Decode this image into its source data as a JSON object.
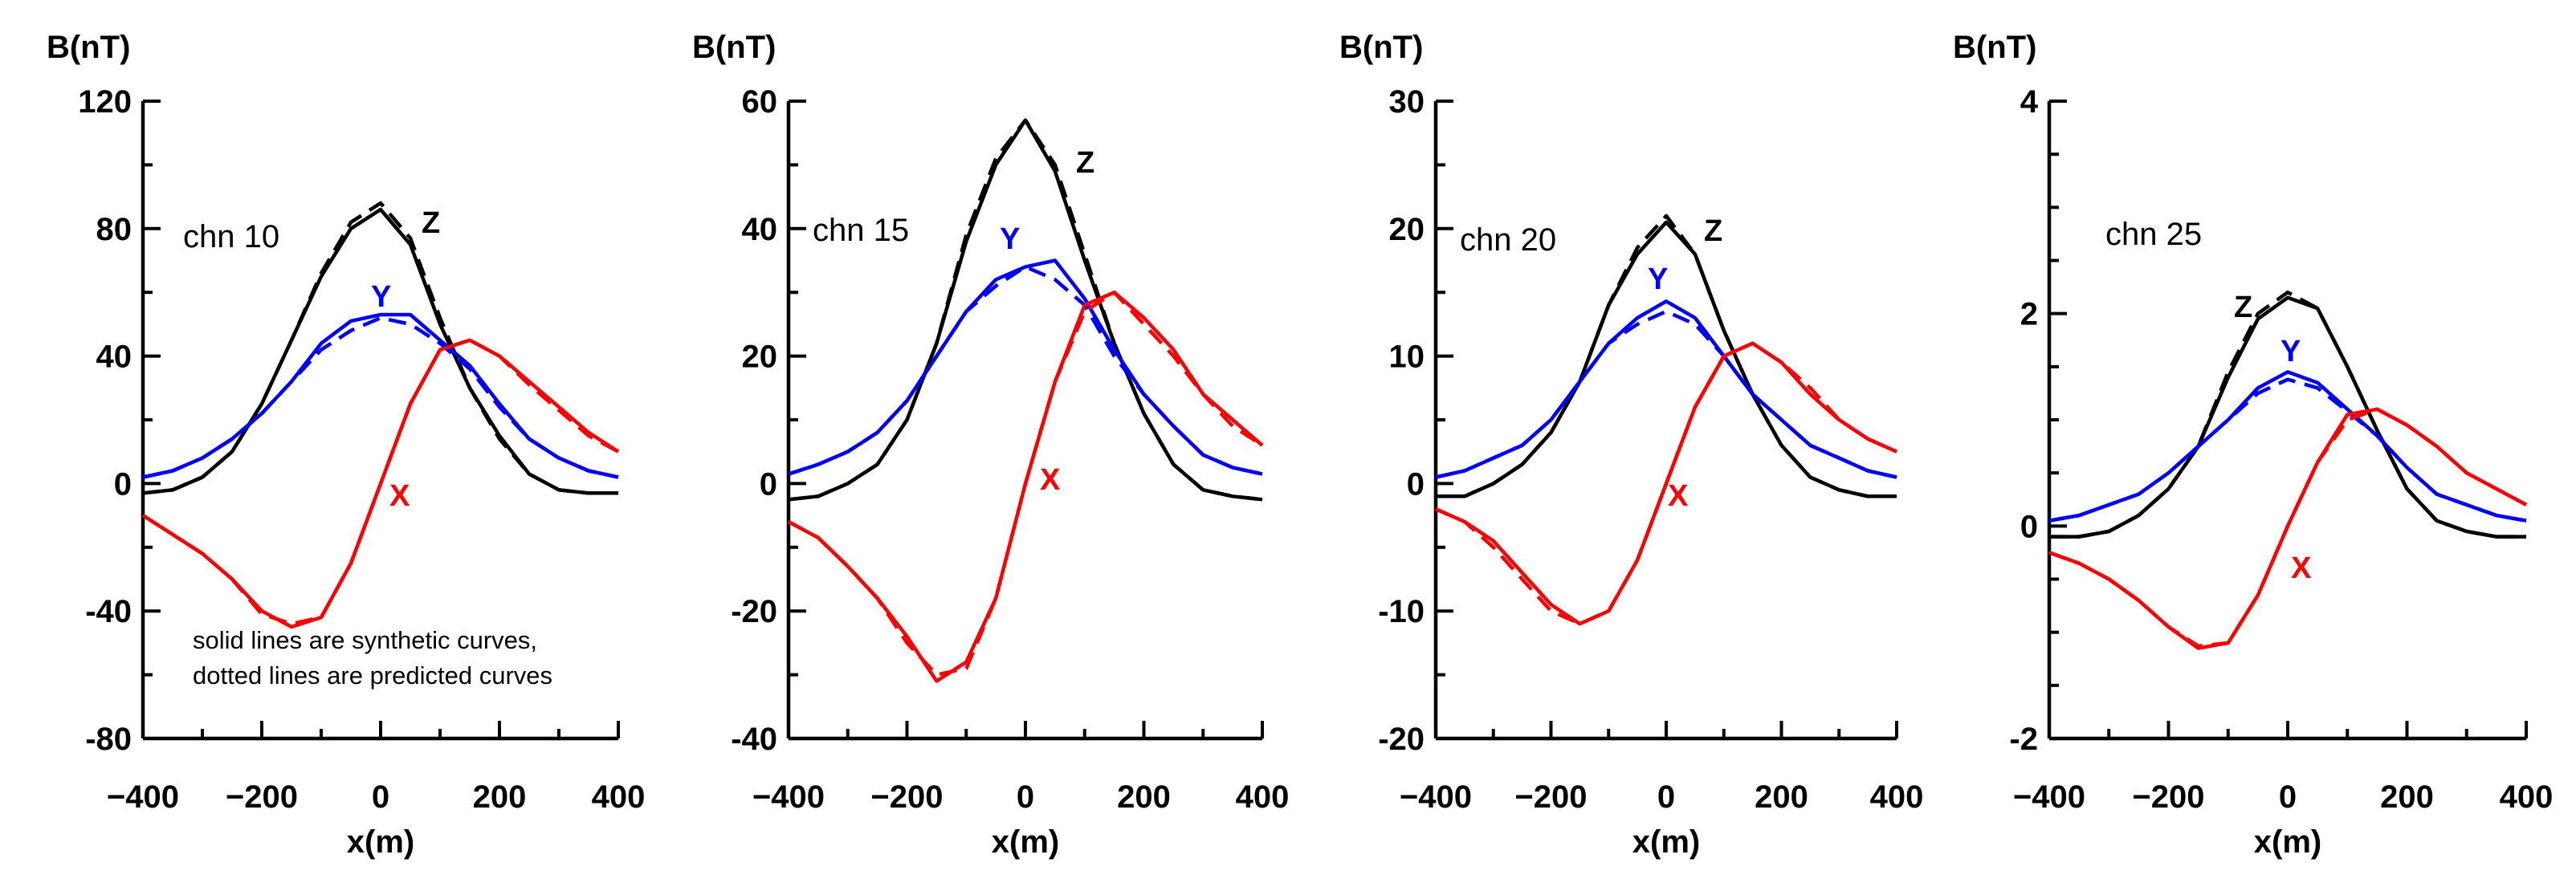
{
  "figure_note": [
    "solid lines are synthetic curves,",
    "dotted lines are predicted curves"
  ],
  "chart_data": [
    {
      "type": "line",
      "title": "chn 10",
      "xlabel": "x(m)",
      "ylabel": "B(nT)",
      "xlim": [
        -400,
        400
      ],
      "ylim": [
        -80,
        120
      ],
      "xticks": [
        -400,
        -200,
        0,
        200,
        400
      ],
      "yticks": [
        -80,
        -40,
        0,
        40,
        80,
        120
      ],
      "series": [
        {
          "name": "Z",
          "color": "#000000",
          "x": [
            -400,
            -350,
            -300,
            -250,
            -200,
            -150,
            -100,
            -50,
            0,
            50,
            100,
            150,
            200,
            250,
            300,
            350,
            400
          ],
          "synthetic": [
            -3,
            -2,
            2,
            10,
            25,
            45,
            65,
            80,
            86,
            75,
            50,
            30,
            15,
            3,
            -2,
            -3,
            -3
          ],
          "predicted": [
            -3,
            -2,
            2,
            10,
            25,
            45,
            66,
            82,
            88,
            77,
            52,
            30,
            14,
            3,
            -2,
            -3,
            -3
          ]
        },
        {
          "name": "Y",
          "color": "#0000ff",
          "x": [
            -400,
            -350,
            -300,
            -250,
            -200,
            -150,
            -100,
            -50,
            0,
            50,
            100,
            150,
            200,
            250,
            300,
            350,
            400
          ],
          "synthetic": [
            2,
            4,
            8,
            14,
            22,
            32,
            44,
            51,
            53,
            53,
            45,
            37,
            25,
            14,
            8,
            4,
            2
          ],
          "predicted": [
            2,
            4,
            8,
            14,
            22,
            32,
            42,
            48,
            52,
            50,
            44,
            36,
            24,
            14,
            8,
            4,
            2
          ]
        },
        {
          "name": "X",
          "color": "#ff0000",
          "x": [
            -400,
            -350,
            -300,
            -250,
            -200,
            -150,
            -100,
            -50,
            0,
            50,
            100,
            150,
            200,
            250,
            300,
            350,
            400
          ],
          "synthetic": [
            -10,
            -16,
            -22,
            -30,
            -40,
            -45,
            -42,
            -25,
            0,
            25,
            42,
            45,
            40,
            32,
            24,
            16,
            10
          ],
          "predicted": [
            -10,
            -16,
            -22,
            -30,
            -41,
            -44,
            -42,
            -25,
            0,
            25,
            42,
            45,
            40,
            31,
            23,
            15,
            10
          ]
        }
      ]
    },
    {
      "type": "line",
      "title": "chn 15",
      "xlabel": "x(m)",
      "ylabel": "B(nT)",
      "xlim": [
        -400,
        400
      ],
      "ylim": [
        -40,
        60
      ],
      "xticks": [
        -400,
        -200,
        0,
        200,
        400
      ],
      "yticks": [
        -40,
        -20,
        0,
        20,
        40,
        60
      ],
      "series": [
        {
          "name": "Z",
          "color": "#000000",
          "x": [
            -400,
            -350,
            -300,
            -250,
            -200,
            -150,
            -100,
            -50,
            0,
            50,
            100,
            150,
            200,
            250,
            300,
            350,
            400
          ],
          "synthetic": [
            -2.5,
            -2,
            0,
            3,
            10,
            22,
            38,
            50,
            57,
            49,
            35,
            22,
            11,
            3,
            -1,
            -2,
            -2.5
          ],
          "predicted": [
            -2.5,
            -2,
            0,
            3,
            10,
            22,
            39,
            51,
            57,
            50,
            36,
            22,
            11,
            3,
            -1,
            -2,
            -2.5
          ]
        },
        {
          "name": "Y",
          "color": "#0000ff",
          "x": [
            -400,
            -350,
            -300,
            -250,
            -200,
            -150,
            -100,
            -50,
            0,
            50,
            100,
            150,
            200,
            250,
            300,
            350,
            400
          ],
          "synthetic": [
            1.5,
            3,
            5,
            8,
            13,
            20,
            27,
            32,
            34,
            35,
            29,
            21,
            14,
            9,
            4.5,
            2.5,
            1.5
          ],
          "predicted": [
            1.5,
            3,
            5,
            8,
            13,
            20,
            27,
            31,
            34,
            32,
            28,
            20,
            14,
            9,
            4.5,
            2.5,
            1.5
          ]
        },
        {
          "name": "X",
          "color": "#ff0000",
          "x": [
            -400,
            -350,
            -300,
            -250,
            -200,
            -150,
            -100,
            -50,
            0,
            50,
            100,
            150,
            200,
            250,
            300,
            350,
            400
          ],
          "synthetic": [
            -6,
            -8.5,
            -13,
            -18,
            -24,
            -31,
            -28,
            -18,
            0,
            16,
            28,
            30,
            26,
            21,
            14,
            10,
            6
          ],
          "predicted": [
            -6,
            -8.5,
            -13,
            -18,
            -25,
            -30,
            -29,
            -18,
            0,
            16,
            27,
            30,
            25,
            20,
            14,
            9,
            6
          ]
        }
      ]
    },
    {
      "type": "line",
      "title": "chn 20",
      "xlabel": "x(m)",
      "ylabel": "B(nT)",
      "xlim": [
        -400,
        400
      ],
      "ylim": [
        -20,
        30
      ],
      "xticks": [
        -400,
        -200,
        0,
        200,
        400
      ],
      "yticks": [
        -20,
        -10,
        0,
        10,
        20,
        30
      ],
      "series": [
        {
          "name": "Z",
          "color": "#000000",
          "x": [
            -400,
            -350,
            -300,
            -250,
            -200,
            -150,
            -100,
            -50,
            0,
            50,
            100,
            150,
            200,
            250,
            300,
            350,
            400
          ],
          "synthetic": [
            -1,
            -1,
            0,
            1.5,
            4,
            8,
            14,
            18,
            20.5,
            18,
            12,
            7,
            3,
            0.5,
            -0.5,
            -1,
            -1
          ],
          "predicted": [
            -1,
            -1,
            0,
            1.5,
            4,
            8,
            14,
            18.5,
            21,
            18,
            12,
            7,
            3,
            0.5,
            -0.5,
            -1,
            -1
          ]
        },
        {
          "name": "Y",
          "color": "#0000ff",
          "x": [
            -400,
            -350,
            -300,
            -250,
            -200,
            -150,
            -100,
            -50,
            0,
            50,
            100,
            150,
            200,
            250,
            300,
            350,
            400
          ],
          "synthetic": [
            0.5,
            1,
            2,
            3,
            5,
            8,
            11,
            13,
            14.3,
            13,
            10,
            7,
            5,
            3,
            2,
            1,
            0.5
          ],
          "predicted": [
            0.5,
            1,
            2,
            3,
            5,
            8,
            11,
            12.5,
            13.5,
            12.5,
            10,
            7,
            5,
            3,
            2,
            1,
            0.5
          ]
        },
        {
          "name": "X",
          "color": "#ff0000",
          "x": [
            -400,
            -350,
            -300,
            -250,
            -200,
            -150,
            -100,
            -50,
            0,
            50,
            100,
            150,
            200,
            250,
            300,
            350,
            400
          ],
          "synthetic": [
            -2,
            -3,
            -4.5,
            -7,
            -9.5,
            -11,
            -10,
            -6,
            0,
            6,
            10,
            11,
            9.5,
            7,
            5,
            3.5,
            2.5
          ],
          "predicted": [
            -2,
            -3,
            -5,
            -7.5,
            -10,
            -11,
            -10,
            -6,
            0,
            6,
            10,
            11,
            9.5,
            7.5,
            5,
            3.5,
            2.5
          ]
        }
      ]
    },
    {
      "type": "line",
      "title": "chn 25",
      "xlabel": "x(m)",
      "ylabel": "B(nT)",
      "xlim": [
        -400,
        400
      ],
      "ylim": [
        -2,
        4
      ],
      "xticks": [
        -400,
        -200,
        0,
        200,
        400
      ],
      "yticks": [
        -2,
        0,
        2,
        4
      ],
      "series": [
        {
          "name": "Z",
          "color": "#000000",
          "x": [
            -400,
            -350,
            -300,
            -250,
            -200,
            -150,
            -100,
            -50,
            0,
            50,
            100,
            150,
            200,
            250,
            300,
            350,
            400
          ],
          "synthetic": [
            -0.1,
            -0.1,
            -0.05,
            0.1,
            0.35,
            0.75,
            1.4,
            1.95,
            2.15,
            2.05,
            1.5,
            0.9,
            0.35,
            0.05,
            -0.05,
            -0.1,
            -0.1
          ],
          "predicted": [
            -0.1,
            -0.1,
            -0.05,
            0.1,
            0.35,
            0.75,
            1.45,
            2.0,
            2.2,
            2.05,
            1.5,
            0.9,
            0.35,
            0.05,
            -0.05,
            -0.1,
            -0.1
          ]
        },
        {
          "name": "Y",
          "color": "#0000ff",
          "x": [
            -400,
            -350,
            -300,
            -250,
            -200,
            -150,
            -100,
            -50,
            0,
            50,
            100,
            150,
            200,
            250,
            300,
            350,
            400
          ],
          "synthetic": [
            0.05,
            0.1,
            0.2,
            0.3,
            0.5,
            0.75,
            1.0,
            1.3,
            1.45,
            1.35,
            1.1,
            0.85,
            0.55,
            0.3,
            0.2,
            0.1,
            0.05
          ],
          "predicted": [
            0.05,
            0.1,
            0.2,
            0.3,
            0.5,
            0.75,
            1.0,
            1.25,
            1.38,
            1.3,
            1.08,
            0.85,
            0.55,
            0.3,
            0.2,
            0.1,
            0.05
          ]
        },
        {
          "name": "X",
          "color": "#ff0000",
          "x": [
            -400,
            -350,
            -300,
            -250,
            -200,
            -150,
            -100,
            -50,
            0,
            50,
            100,
            150,
            200,
            250,
            300,
            350,
            400
          ],
          "synthetic": [
            -0.25,
            -0.35,
            -0.5,
            -0.7,
            -0.95,
            -1.15,
            -1.1,
            -0.65,
            0,
            0.6,
            1.05,
            1.1,
            0.95,
            0.75,
            0.5,
            0.35,
            0.2
          ],
          "predicted": [
            -0.25,
            -0.35,
            -0.5,
            -0.7,
            -0.95,
            -1.13,
            -1.1,
            -0.65,
            0,
            0.6,
            1.0,
            1.1,
            0.95,
            0.75,
            0.5,
            0.35,
            0.2
          ]
        }
      ]
    }
  ]
}
